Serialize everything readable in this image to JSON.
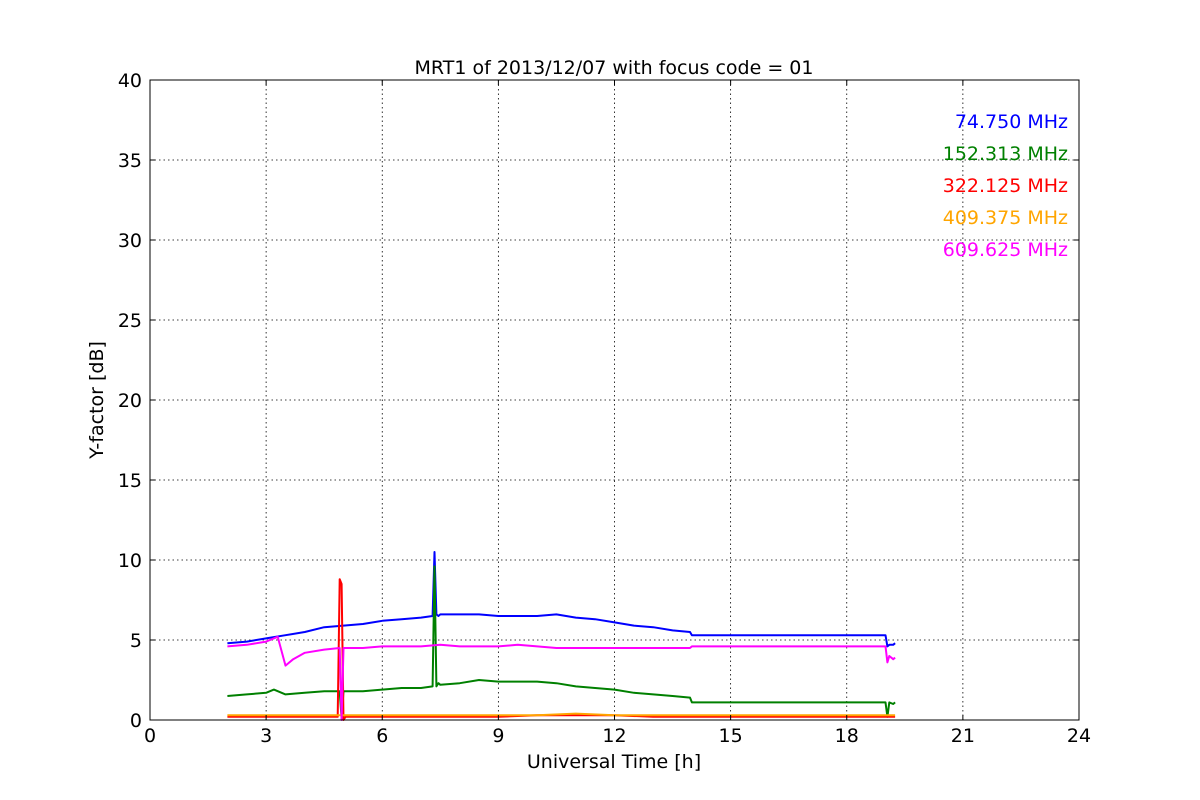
{
  "chart_data": {
    "type": "line",
    "title": "MRT1 of 2013/12/07 with focus code = 01",
    "xlabel": "Universal Time [h]",
    "ylabel": "Y-factor [dB]",
    "xlim": [
      0,
      24
    ],
    "ylim": [
      0,
      40
    ],
    "xticks": [
      0,
      3,
      6,
      9,
      12,
      15,
      18,
      21,
      24
    ],
    "yticks": [
      0,
      5,
      10,
      15,
      20,
      25,
      30,
      35,
      40
    ],
    "grid": true,
    "legend_position": "top-right",
    "series": [
      {
        "name": "74.750 MHz",
        "color": "#0000ff",
        "x": [
          2.0,
          2.5,
          3.0,
          3.5,
          4.0,
          4.5,
          5.0,
          5.5,
          6.0,
          6.5,
          7.0,
          7.3,
          7.35,
          7.4,
          7.45,
          7.5,
          8.0,
          8.5,
          9.0,
          9.5,
          10.0,
          10.5,
          11.0,
          11.5,
          12.0,
          12.5,
          13.0,
          13.5,
          13.95,
          14.0,
          19.0,
          19.05,
          19.1,
          19.2,
          19.25
        ],
        "y": [
          4.8,
          4.9,
          5.1,
          5.3,
          5.5,
          5.8,
          5.9,
          6.0,
          6.2,
          6.3,
          6.4,
          6.5,
          10.5,
          6.6,
          6.5,
          6.6,
          6.6,
          6.6,
          6.5,
          6.5,
          6.5,
          6.6,
          6.4,
          6.3,
          6.1,
          5.9,
          5.8,
          5.6,
          5.5,
          5.3,
          5.3,
          4.6,
          4.7,
          4.7,
          4.8
        ]
      },
      {
        "name": "152.313 MHz",
        "color": "#008000",
        "x": [
          2.0,
          2.5,
          3.0,
          3.2,
          3.5,
          4.0,
          4.5,
          4.9,
          4.95,
          5.0,
          5.5,
          6.0,
          6.5,
          7.0,
          7.3,
          7.35,
          7.4,
          7.45,
          7.5,
          8.0,
          8.5,
          9.0,
          9.5,
          10.0,
          10.5,
          11.0,
          11.5,
          12.0,
          12.5,
          13.0,
          13.5,
          13.95,
          14.0,
          19.0,
          19.05,
          19.1,
          19.2,
          19.25
        ],
        "y": [
          1.5,
          1.6,
          1.7,
          1.9,
          1.6,
          1.7,
          1.8,
          1.8,
          0.1,
          1.8,
          1.8,
          1.9,
          2.0,
          2.0,
          2.1,
          9.6,
          2.1,
          2.3,
          2.2,
          2.3,
          2.5,
          2.4,
          2.4,
          2.4,
          2.3,
          2.1,
          2.0,
          1.9,
          1.7,
          1.6,
          1.5,
          1.4,
          1.1,
          1.1,
          0.2,
          1.1,
          1.0,
          1.1
        ]
      },
      {
        "name": "322.125 MHz",
        "color": "#ff0000",
        "x": [
          2.0,
          3.0,
          4.0,
          4.85,
          4.9,
          4.95,
          5.0,
          5.05,
          6.0,
          7.0,
          8.0,
          9.0,
          10.0,
          11.0,
          12.0,
          13.0,
          14.0,
          19.0,
          19.25
        ],
        "y": [
          0.2,
          0.2,
          0.2,
          0.2,
          8.8,
          8.5,
          0.0,
          0.2,
          0.2,
          0.2,
          0.2,
          0.2,
          0.3,
          0.3,
          0.3,
          0.2,
          0.2,
          0.2,
          0.2
        ]
      },
      {
        "name": "409.375 MHz",
        "color": "#ffa500",
        "x": [
          2.0,
          3.0,
          4.0,
          4.9,
          5.0,
          6.0,
          7.0,
          8.0,
          9.0,
          10.0,
          11.0,
          12.0,
          13.0,
          14.0,
          19.0,
          19.25
        ],
        "y": [
          0.3,
          0.3,
          0.3,
          0.3,
          0.3,
          0.3,
          0.3,
          0.3,
          0.3,
          0.3,
          0.4,
          0.3,
          0.3,
          0.3,
          0.3,
          0.3
        ]
      },
      {
        "name": "609.625 MHz",
        "color": "#ff00ff",
        "x": [
          2.0,
          2.5,
          3.0,
          3.3,
          3.5,
          3.7,
          4.0,
          4.5,
          4.9,
          4.95,
          5.0,
          5.5,
          6.0,
          6.5,
          7.0,
          7.5,
          8.0,
          8.5,
          9.0,
          9.5,
          10.0,
          10.5,
          11.0,
          11.5,
          12.0,
          12.5,
          13.0,
          13.5,
          13.95,
          14.0,
          19.0,
          19.05,
          19.1,
          19.2,
          19.25
        ],
        "y": [
          4.6,
          4.7,
          4.9,
          5.2,
          3.4,
          3.8,
          4.2,
          4.4,
          4.5,
          0.0,
          4.5,
          4.5,
          4.6,
          4.6,
          4.6,
          4.7,
          4.6,
          4.6,
          4.6,
          4.7,
          4.6,
          4.5,
          4.5,
          4.5,
          4.5,
          4.5,
          4.5,
          4.5,
          4.5,
          4.6,
          4.6,
          3.6,
          4.0,
          3.8,
          3.9
        ]
      }
    ]
  }
}
